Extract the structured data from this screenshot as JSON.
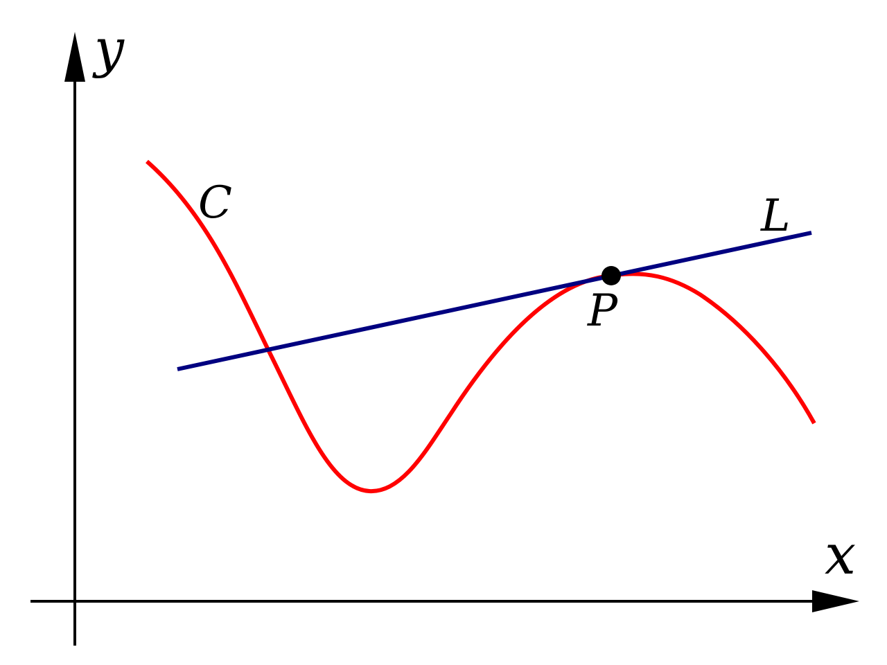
{
  "axes": {
    "x_label": "x",
    "y_label": "y"
  },
  "curve": {
    "label": "C",
    "color": "#ff0000"
  },
  "tangent_line": {
    "label": "L",
    "color": "#000080"
  },
  "tangent_point": {
    "label": "P",
    "color": "#000000"
  },
  "axis_color": "#000000"
}
